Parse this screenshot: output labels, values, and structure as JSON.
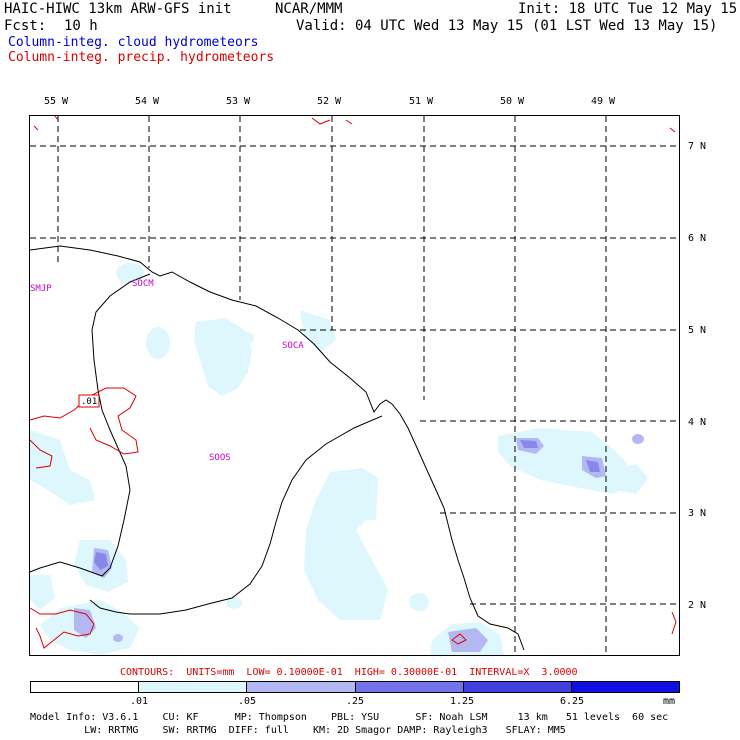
{
  "header": {
    "model": "HAIC-HIWC 13km ARW-GFS init",
    "org": "NCAR/MMM",
    "init": "Init: 18 UTC Tue 12 May 15",
    "fcst_label": "Fcst:",
    "fcst_value": "10 h",
    "valid": "Valid: 04 UTC Wed 13 May 15 (01 LST Wed 13 May 15)",
    "field1": "Column-integ. cloud hydrometeors",
    "field2": "Column-integ. precip. hydrometeors"
  },
  "map": {
    "lon_labels": [
      "55 W",
      "54 W",
      "53 W",
      "52 W",
      "51 W",
      "50 W",
      "49 W"
    ],
    "lat_labels": [
      "7 N",
      "6 N",
      "5 N",
      "4 N",
      "3 N",
      "2 N"
    ],
    "stations": [
      "SMJP",
      "SOCM",
      "SOCA",
      "SOOS"
    ],
    "contour_label": ".01"
  },
  "contours_info": "CONTOURS:  UNITS=mm  LOW= 0.10000E-01  HIGH= 0.30000E-01  INTERVAL=X  3.0000",
  "scale": {
    "colors": [
      "#ffffff",
      "#ddf7fd",
      "#b4b8f2",
      "#7373ea",
      "#4040e0",
      "#1010e0"
    ],
    "labels": [
      ".01",
      ".05",
      ".25",
      "1.25",
      "6.25",
      "mm"
    ]
  },
  "footer": {
    "line1": "Model Info: V3.6.1    CU: KF      MP: Thompson    PBL: YSU      SF: Noah LSM     13 km   51 levels  60 sec",
    "line2": "         LW: RRTMG    SW: RRTMG  DIFF: full    KM: 2D Smagor DAMP: Rayleigh3   SFLAY: MM5"
  }
}
